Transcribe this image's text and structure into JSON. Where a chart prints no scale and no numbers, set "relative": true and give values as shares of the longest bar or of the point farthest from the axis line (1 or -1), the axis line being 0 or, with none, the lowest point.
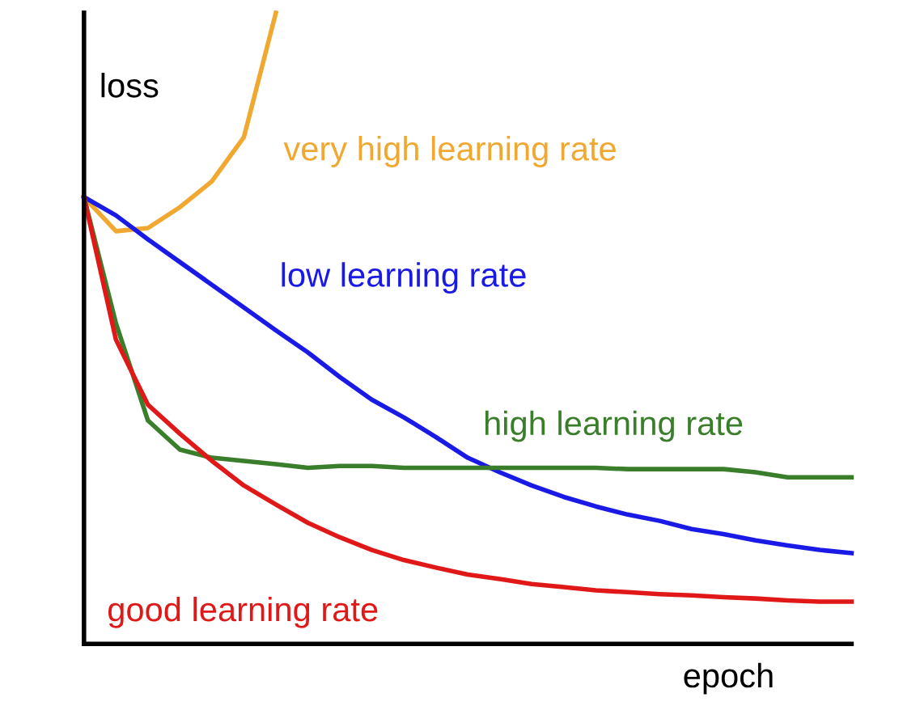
{
  "chart_data": {
    "type": "line",
    "relative": true,
    "xlabel": "epoch",
    "ylabel": "loss",
    "tick_labels": false,
    "legend": false,
    "marker": "none",
    "line_style": "solid",
    "categories": [
      null,
      null,
      null,
      null,
      null,
      null,
      null,
      null,
      null,
      null,
      null,
      null,
      null,
      null,
      null,
      null,
      null,
      null,
      null,
      null,
      null,
      null,
      null,
      null,
      null
    ],
    "series": [
      {
        "name": "very high learning rate",
        "color": "#f0a830",
        "values": [
          0.708,
          0.654,
          0.659,
          0.692,
          0.733,
          0.803,
          1.0,
          null,
          null,
          null,
          null,
          null,
          null,
          null,
          null,
          null,
          null,
          null,
          null,
          null,
          null,
          null,
          null,
          null,
          null
        ]
      },
      {
        "name": "low learning rate",
        "color": "#1a1ae6",
        "values": [
          0.708,
          0.679,
          0.641,
          0.605,
          0.569,
          0.533,
          0.497,
          0.462,
          0.423,
          0.387,
          0.359,
          0.328,
          0.295,
          0.272,
          0.251,
          0.233,
          0.218,
          0.205,
          0.195,
          0.182,
          0.174,
          0.164,
          0.156,
          0.149,
          0.144
        ]
      },
      {
        "name": "high learning rate",
        "color": "#3a7d2a",
        "values": [
          0.708,
          0.508,
          0.354,
          0.308,
          0.295,
          0.29,
          0.285,
          0.279,
          0.282,
          0.282,
          0.279,
          0.279,
          0.279,
          0.279,
          0.279,
          0.279,
          0.279,
          0.277,
          0.277,
          0.277,
          0.277,
          0.272,
          0.264,
          0.264,
          0.264
        ]
      },
      {
        "name": "good learning rate",
        "color": "#e01818",
        "values": [
          0.708,
          0.482,
          0.379,
          0.333,
          0.29,
          0.251,
          0.221,
          0.192,
          0.169,
          0.149,
          0.133,
          0.121,
          0.11,
          0.103,
          0.095,
          0.09,
          0.085,
          0.082,
          0.079,
          0.077,
          0.074,
          0.072,
          0.069,
          0.067,
          0.067
        ]
      }
    ]
  }
}
